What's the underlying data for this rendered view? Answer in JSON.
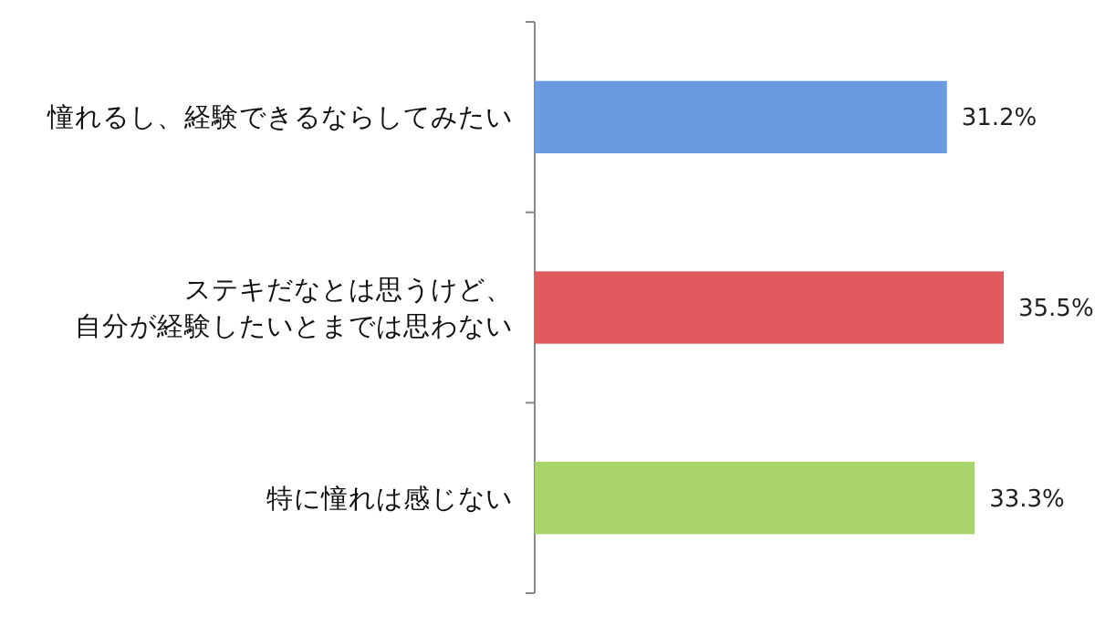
{
  "chart_data": {
    "type": "bar",
    "orientation": "horizontal",
    "categories": [
      "憧れるし、経験できるならしてみたい",
      "ステキだなとは思うけど、自分が経験したいとまでは思わない",
      "特に憧れは感じない"
    ],
    "values": [
      31.2,
      35.5,
      33.3
    ],
    "colors": [
      "#6a9be0",
      "#e05a5e",
      "#a9d46c"
    ],
    "value_labels": [
      "31.2%",
      "35.5%",
      "33.3%"
    ],
    "tick_labels": "y"
  }
}
